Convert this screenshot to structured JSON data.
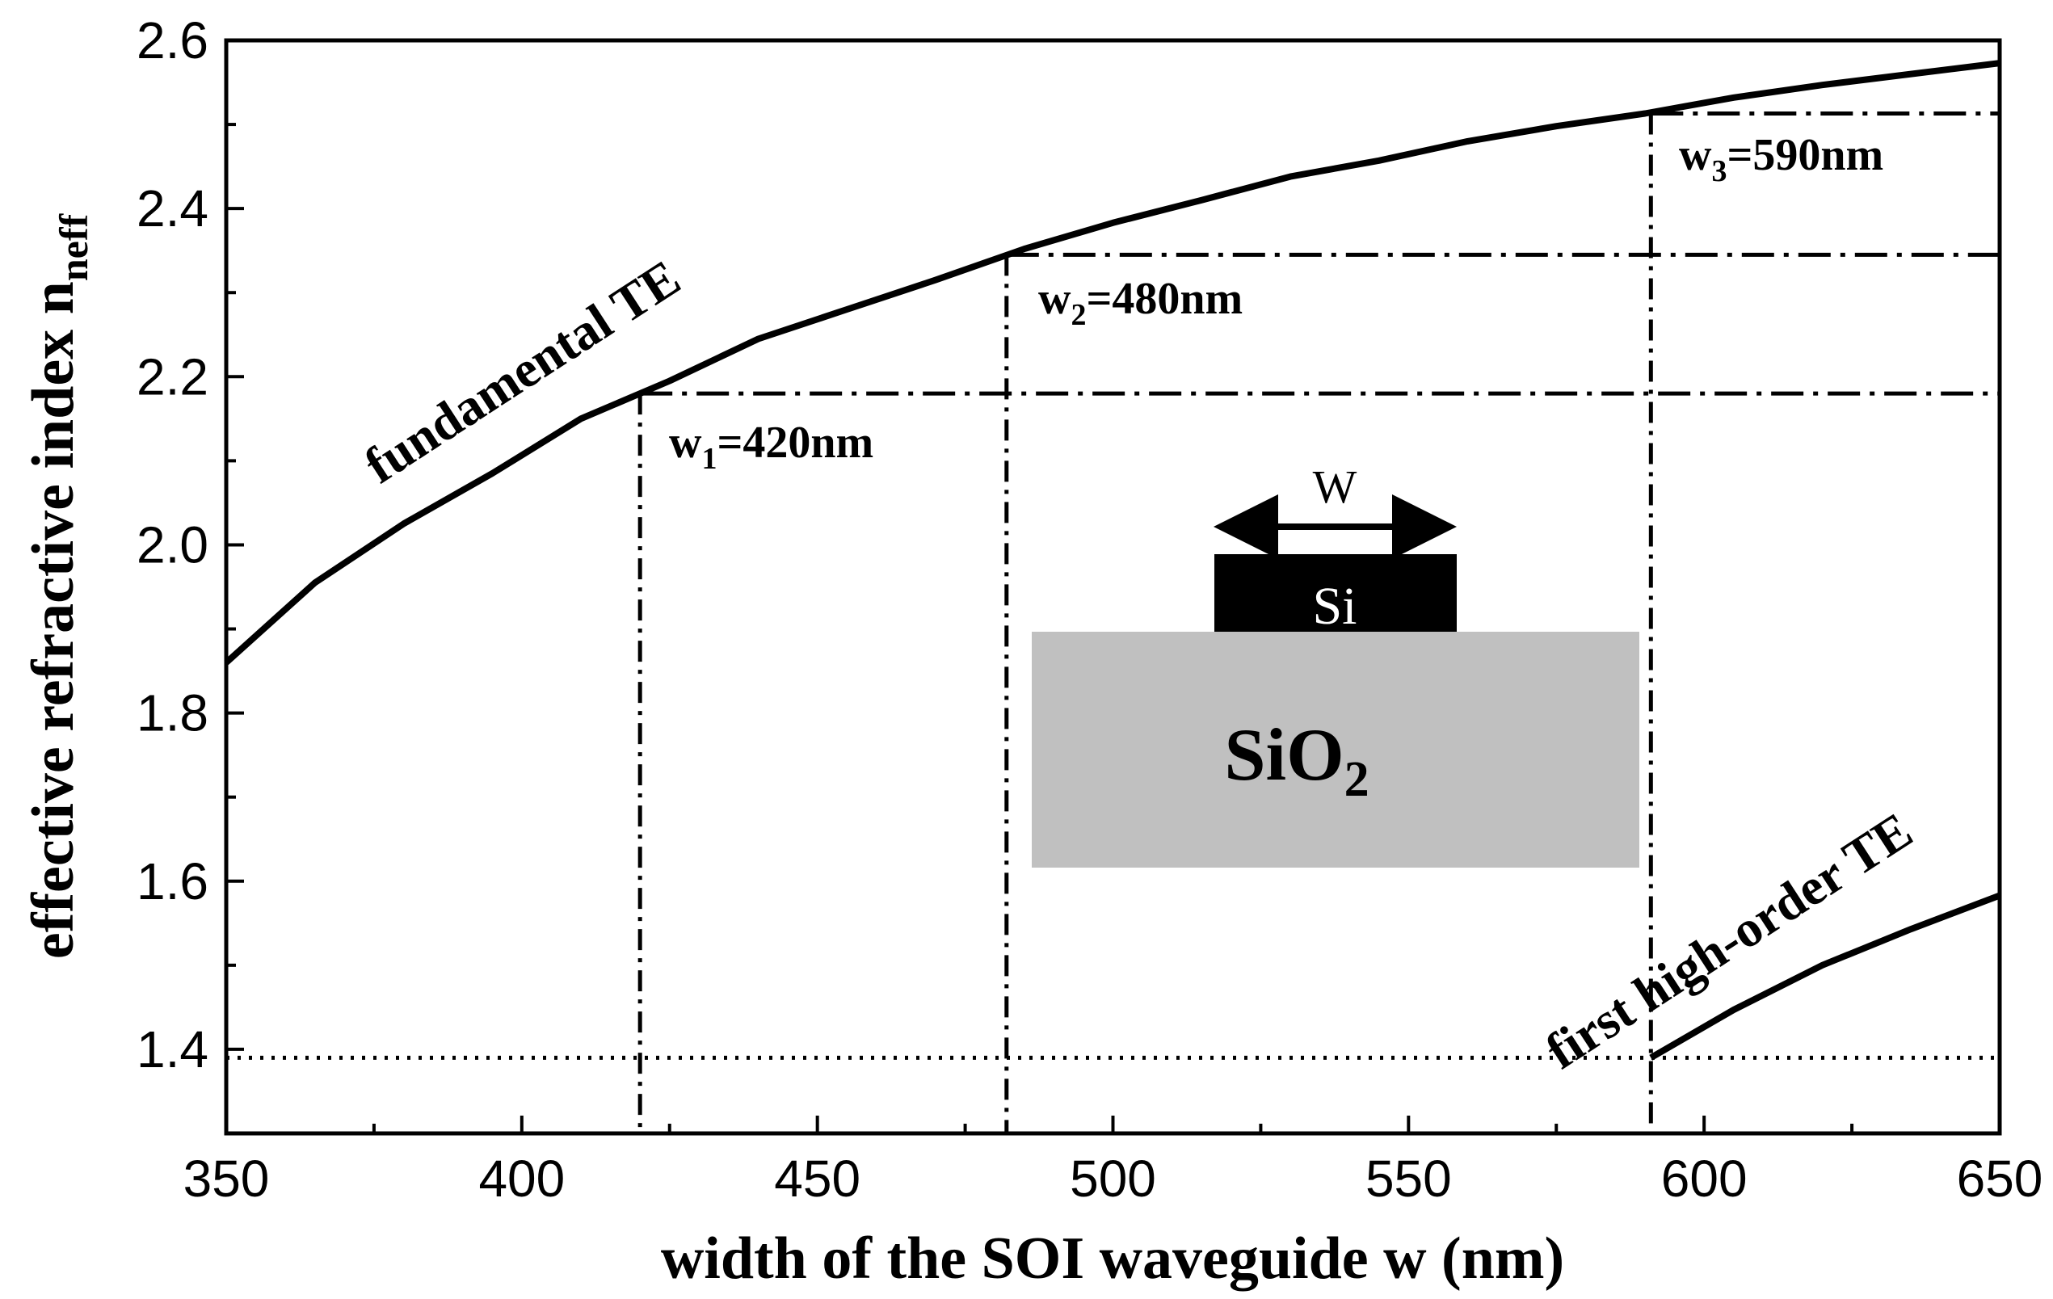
{
  "chart_data": {
    "type": "line",
    "xlabel": "width of the SOI waveguide w (nm)",
    "ylabel": {
      "main": "effective refractive index n",
      "sub": "neff"
    },
    "xlim": [
      350,
      650
    ],
    "ylim": [
      1.3,
      2.6
    ],
    "xticks": [
      350,
      400,
      450,
      500,
      550,
      600,
      650
    ],
    "yticks": [
      1.4,
      1.6,
      1.8,
      2.0,
      2.2,
      2.4,
      2.6
    ],
    "grid": false,
    "series": [
      {
        "name": "fundamental TE",
        "x": [
          350,
          365,
          380,
          395,
          410,
          425,
          440,
          455,
          470,
          485,
          500,
          515,
          530,
          545,
          560,
          575,
          590,
          605,
          620,
          635,
          650
        ],
        "y": [
          1.86,
          1.955,
          2.025,
          2.085,
          2.15,
          2.195,
          2.245,
          2.28,
          2.315,
          2.352,
          2.383,
          2.41,
          2.438,
          2.457,
          2.48,
          2.498,
          2.513,
          2.532,
          2.547,
          2.56,
          2.573
        ]
      },
      {
        "name": "first high-order TE",
        "x": [
          591,
          605,
          620,
          635,
          650
        ],
        "y": [
          1.39,
          1.447,
          1.5,
          1.543,
          1.583
        ]
      }
    ],
    "reference_lines": {
      "cutoff_index": 1.39,
      "markers": [
        {
          "label_main": "w",
          "label_sub": "1",
          "label_rest": "=420nm",
          "x": 420,
          "y": 2.18
        },
        {
          "label_main": "w",
          "label_sub": "2",
          "label_rest": "=480nm",
          "x": 482,
          "y": 2.345
        },
        {
          "label_main": "w",
          "label_sub": "3",
          "label_rest": "=590nm",
          "x": 591,
          "y": 2.513
        }
      ]
    },
    "inset": {
      "width_label": "W",
      "core_label": "Si",
      "substrate_label_main": "SiO",
      "substrate_label_sub": "2",
      "core_color": "#000000",
      "substrate_color": "#c0c0c0"
    }
  }
}
